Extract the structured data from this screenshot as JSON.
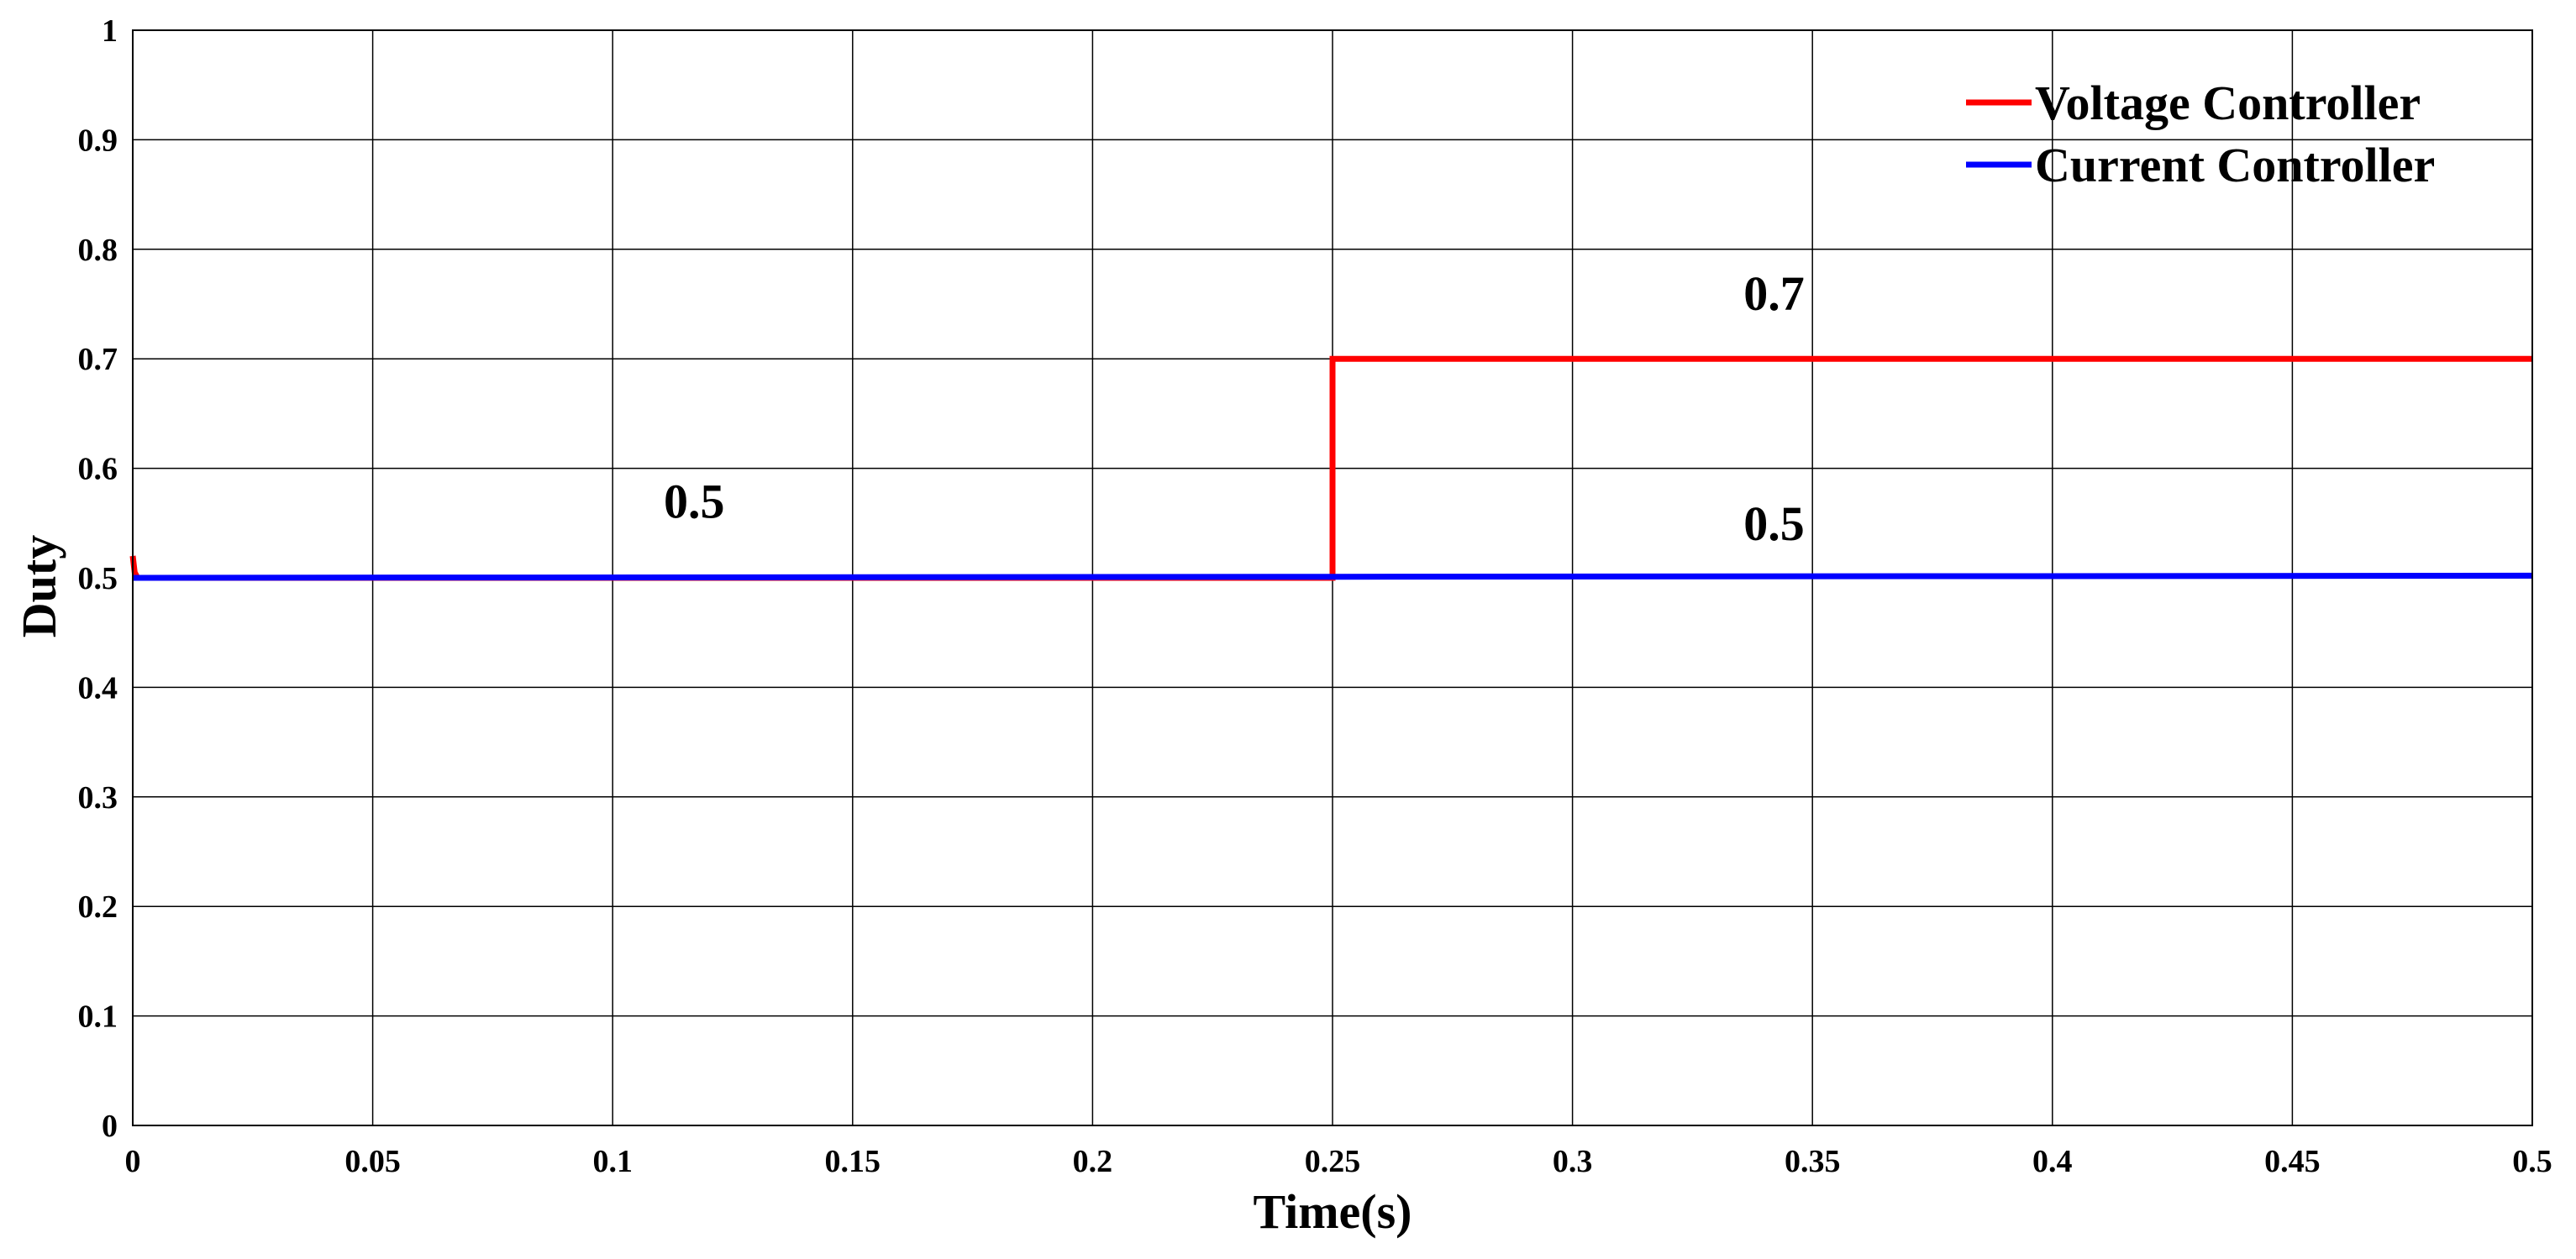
{
  "chart_data": {
    "type": "line",
    "title": "",
    "xlabel": "Time(s)",
    "ylabel": "Duty",
    "xlim": [
      0,
      0.5
    ],
    "ylim": [
      0,
      1
    ],
    "xticks": [
      0,
      0.05,
      0.1,
      0.15,
      0.2,
      0.25,
      0.3,
      0.35,
      0.4,
      0.45,
      0.5
    ],
    "xtick_labels": [
      "0",
      "0.05",
      "0.1",
      "0.15",
      "0.2",
      "0.25",
      "0.3",
      "0.35",
      "0.4",
      "0.45",
      "0.5"
    ],
    "yticks": [
      0,
      0.1,
      0.2,
      0.3,
      0.4,
      0.5,
      0.6,
      0.7,
      0.8,
      0.9,
      1
    ],
    "ytick_labels": [
      "0",
      "0.1",
      "0.2",
      "0.3",
      "0.4",
      "0.5",
      "0.6",
      "0.7",
      "0.8",
      "0.9",
      "1"
    ],
    "grid": true,
    "legend_position": "top-right",
    "series": [
      {
        "name": "Voltage Controller",
        "color": "#ff0000",
        "x": [
          0,
          0.0004,
          0.001,
          0.25,
          0.25,
          0.5
        ],
        "y": [
          0.52,
          0.505,
          0.5,
          0.5,
          0.7,
          0.7
        ]
      },
      {
        "name": "Current Controller",
        "color": "#0000ff",
        "x": [
          0,
          0.25,
          0.5
        ],
        "y": [
          0.5,
          0.501,
          0.502
        ]
      }
    ],
    "annotations": [
      {
        "text": "0.5",
        "x": 0.117,
        "y": 0.57
      },
      {
        "text": "0.7",
        "x": 0.342,
        "y": 0.76
      },
      {
        "text": "0.5",
        "x": 0.342,
        "y": 0.55
      }
    ]
  }
}
